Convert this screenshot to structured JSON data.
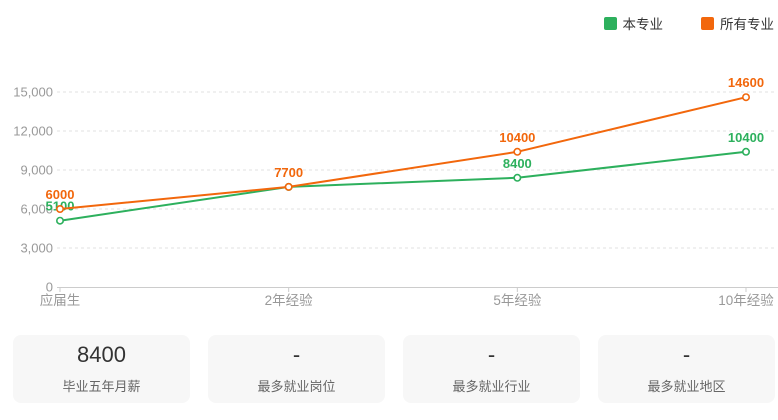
{
  "chart_data": {
    "type": "line",
    "title": "",
    "categories": [
      "应届生",
      "2年经验",
      "5年经验",
      "10年经验"
    ],
    "series": [
      {
        "name": "本专业",
        "color": "#2DB05D",
        "values": [
          5100,
          7700,
          8400,
          10400
        ],
        "point_labels": [
          "5100",
          "",
          "8400",
          "10400"
        ]
      },
      {
        "name": "所有专业",
        "color": "#F2670C",
        "values": [
          6000,
          7700,
          10400,
          14600
        ],
        "point_labels": [
          "6000",
          "7700",
          "10400",
          "14600"
        ]
      }
    ],
    "xlabel": "",
    "ylabel": "",
    "ylim": [
      0,
      15000
    ],
    "yticks": [
      0,
      3000,
      6000,
      9000,
      12000,
      15000
    ],
    "ytick_labels": [
      "0",
      "3,000",
      "6,000",
      "9,000",
      "12,000",
      "15,000"
    ],
    "grid": true,
    "grid_style": "dashed",
    "legend_position": "top-right"
  },
  "summary_cards": [
    {
      "value": "8400",
      "label": "毕业五年月薪"
    },
    {
      "value": "-",
      "label": "最多就业岗位"
    },
    {
      "value": "-",
      "label": "最多就业行业"
    },
    {
      "value": "-",
      "label": "最多就业地区"
    }
  ],
  "colors": {
    "axis_text": "#999999",
    "axis_line": "#cccccc",
    "gridline": "#e2e2e2",
    "card_bg": "#f7f7f7",
    "card_value_text": "#333333",
    "card_label_text": "#666666",
    "legend_text": "#333333",
    "background": "#ffffff"
  }
}
